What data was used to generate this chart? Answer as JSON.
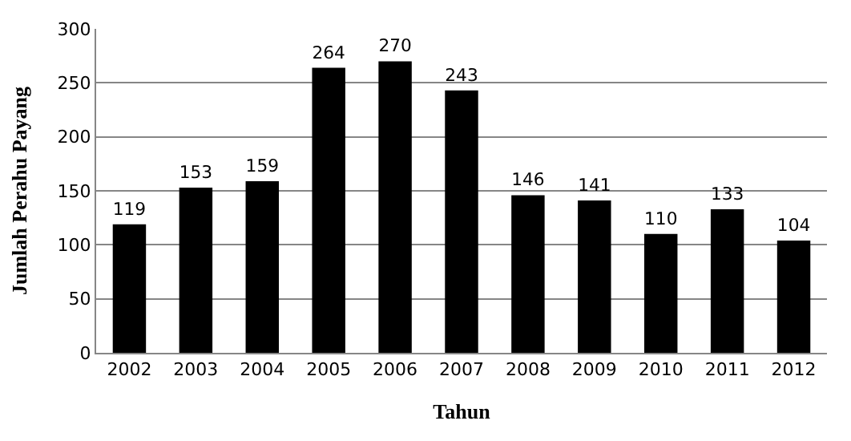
{
  "chart_data": {
    "type": "bar",
    "categories": [
      "2002",
      "2003",
      "2004",
      "2005",
      "2006",
      "2007",
      "2008",
      "2009",
      "2010",
      "2011",
      "2012"
    ],
    "values": [
      119,
      153,
      159,
      264,
      270,
      243,
      146,
      141,
      110,
      133,
      104
    ],
    "color": "#000000",
    "xlabel": "Tahun",
    "ylabel": "Jumlah Perahu Payang",
    "ylim": [
      0,
      300
    ],
    "yticks": [
      0,
      50,
      100,
      150,
      200,
      250,
      300
    ],
    "grid": "y",
    "data_labels": true,
    "legend": false
  }
}
